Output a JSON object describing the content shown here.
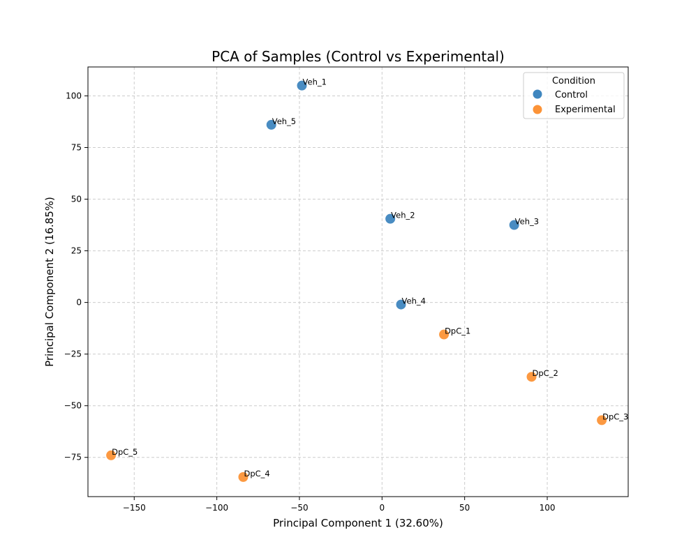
{
  "chart_data": {
    "type": "scatter",
    "title": "PCA of Samples (Control vs Experimental)",
    "xlabel": "Principal Component 1 (32.60%)",
    "ylabel": "Principal Component 2 (16.85%)",
    "xlim": [
      -178,
      149
    ],
    "ylim": [
      -94,
      114
    ],
    "xticks": [
      -150,
      -100,
      -50,
      0,
      50,
      100
    ],
    "yticks": [
      -75,
      -50,
      -25,
      0,
      25,
      50,
      75,
      100
    ],
    "xtick_labels": [
      "−150",
      "−100",
      "−50",
      "0",
      "50",
      "100"
    ],
    "ytick_labels": [
      "−75",
      "−50",
      "−25",
      "0",
      "25",
      "50",
      "75",
      "100"
    ],
    "grid": true,
    "legend": {
      "title": "Condition",
      "position": "top-right"
    },
    "series": [
      {
        "name": "Control",
        "color": "#3f86bf",
        "points": [
          {
            "label": "Veh_1",
            "x": -48.5,
            "y": 105
          },
          {
            "label": "Veh_5",
            "x": -67,
            "y": 86
          },
          {
            "label": "Veh_2",
            "x": 5,
            "y": 40.5
          },
          {
            "label": "Veh_3",
            "x": 80,
            "y": 37.5
          },
          {
            "label": "Veh_4",
            "x": 11.5,
            "y": -1
          }
        ]
      },
      {
        "name": "Experimental",
        "color": "#fc9337",
        "points": [
          {
            "label": "DpC_1",
            "x": 37.5,
            "y": -15.5
          },
          {
            "label": "DpC_2",
            "x": 90.5,
            "y": -36
          },
          {
            "label": "DpC_3",
            "x": 133,
            "y": -57
          },
          {
            "label": "DpC_5",
            "x": -164,
            "y": -74
          },
          {
            "label": "DpC_4",
            "x": -84,
            "y": -84.5
          }
        ]
      }
    ]
  }
}
